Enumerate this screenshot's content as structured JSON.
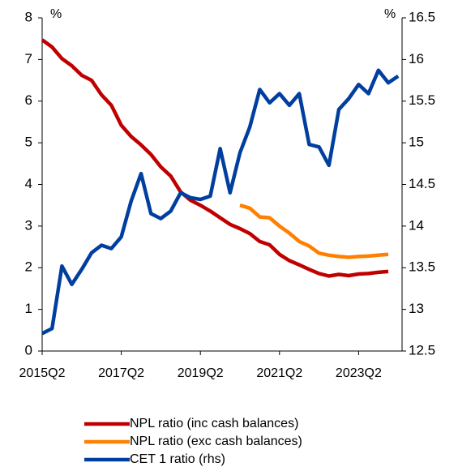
{
  "chart_data": {
    "type": "line",
    "ylabel": "%",
    "y2label": "%",
    "categories": [
      "2015Q2",
      null,
      null,
      null,
      null,
      null,
      null,
      null,
      "2017Q2",
      null,
      null,
      null,
      null,
      null,
      null,
      null,
      "2019Q2",
      null,
      null,
      null,
      null,
      null,
      null,
      null,
      "2021Q2",
      null,
      null,
      null,
      null,
      null,
      null,
      null,
      "2023Q2",
      null,
      null,
      null,
      null
    ],
    "ylim": [
      0,
      8
    ],
    "yticks": [
      0,
      1,
      2,
      3,
      4,
      5,
      6,
      7,
      8
    ],
    "y2lim": [
      12.5,
      16.5
    ],
    "y2ticks": [
      12.5,
      13,
      13.5,
      14,
      14.5,
      15,
      15.5,
      16,
      16.5
    ],
    "series": [
      {
        "name": "NPL ratio (inc cash balances)",
        "color": "#c00000",
        "values": [
          7.47,
          7.3,
          7.02,
          6.85,
          6.62,
          6.5,
          6.15,
          5.9,
          5.42,
          5.15,
          4.95,
          4.72,
          4.42,
          4.2,
          3.82,
          3.62,
          3.5,
          3.36,
          3.2,
          3.04,
          2.94,
          2.82,
          2.63,
          2.55,
          2.32,
          2.17,
          2.07,
          1.96,
          1.86,
          1.8,
          1.84,
          1.81,
          1.85,
          1.86,
          1.89,
          1.91,
          null
        ]
      },
      {
        "name": "NPL ratio (exc cash balances)",
        "color": "#ff7f00",
        "values": [
          null,
          null,
          null,
          null,
          null,
          null,
          null,
          null,
          null,
          null,
          null,
          null,
          null,
          null,
          null,
          null,
          null,
          null,
          null,
          null,
          3.5,
          3.43,
          3.22,
          3.2,
          3.0,
          2.83,
          2.63,
          2.52,
          2.35,
          2.3,
          2.27,
          2.25,
          2.27,
          2.28,
          2.3,
          2.32,
          null
        ]
      },
      {
        "name": "CET 1 ratio (rhs)",
        "color": "#003f9f",
        "axis": "y2",
        "values": [
          12.71,
          12.77,
          13.52,
          13.3,
          13.48,
          13.68,
          13.77,
          13.73,
          13.87,
          14.3,
          14.63,
          14.15,
          14.09,
          14.18,
          14.4,
          14.34,
          14.32,
          14.36,
          14.93,
          14.4,
          14.88,
          15.19,
          15.64,
          15.48,
          15.59,
          15.45,
          15.59,
          14.98,
          14.95,
          14.73,
          15.4,
          15.53,
          15.7,
          15.59,
          15.87,
          15.72,
          15.8
        ]
      }
    ]
  }
}
